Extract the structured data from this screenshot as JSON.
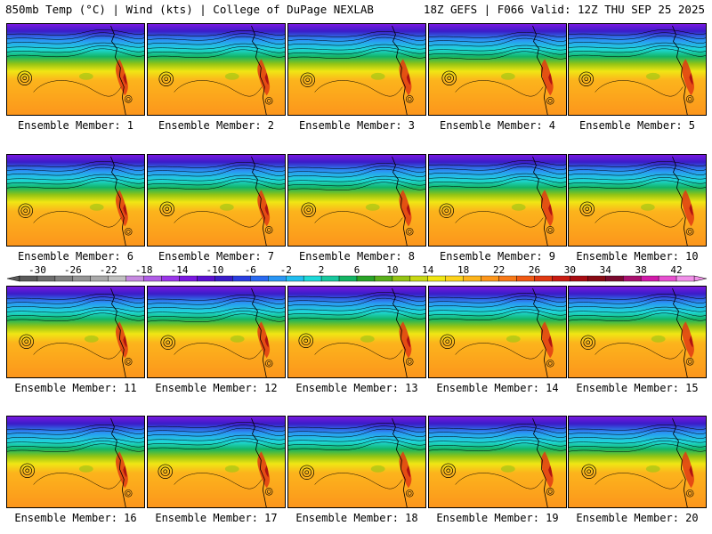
{
  "header": {
    "left": "850mb Temp (°C) | Wind (kts) | College of DuPage NEXLAB",
    "right": "18Z GEFS | F066 Valid: 12Z THU SEP 25 2025"
  },
  "member_label_prefix": "Ensemble Member: ",
  "members": [
    {
      "number": 1,
      "caption": "Ensemble Member: 1"
    },
    {
      "number": 2,
      "caption": "Ensemble Member: 2"
    },
    {
      "number": 3,
      "caption": "Ensemble Member: 3"
    },
    {
      "number": 4,
      "caption": "Ensemble Member: 4"
    },
    {
      "number": 5,
      "caption": "Ensemble Member: 5"
    },
    {
      "number": 6,
      "caption": "Ensemble Member: 6"
    },
    {
      "number": 7,
      "caption": "Ensemble Member: 7"
    },
    {
      "number": 8,
      "caption": "Ensemble Member: 8"
    },
    {
      "number": 9,
      "caption": "Ensemble Member: 9"
    },
    {
      "number": 10,
      "caption": "Ensemble Member: 10"
    },
    {
      "number": 11,
      "caption": "Ensemble Member: 11"
    },
    {
      "number": 12,
      "caption": "Ensemble Member: 12"
    },
    {
      "number": 13,
      "caption": "Ensemble Member: 13"
    },
    {
      "number": 14,
      "caption": "Ensemble Member: 14"
    },
    {
      "number": 15,
      "caption": "Ensemble Member: 15"
    },
    {
      "number": 16,
      "caption": "Ensemble Member: 16"
    },
    {
      "number": 17,
      "caption": "Ensemble Member: 17"
    },
    {
      "number": 18,
      "caption": "Ensemble Member: 18"
    },
    {
      "number": 19,
      "caption": "Ensemble Member: 19"
    },
    {
      "number": 20,
      "caption": "Ensemble Member: 20"
    }
  ],
  "colorbar": {
    "unit": "°C",
    "min": -32,
    "max": 44,
    "step": 2,
    "tick_labels": [
      "-30",
      "-26",
      "-22",
      "-18",
      "-14",
      "-10",
      "-6",
      "-2",
      "2",
      "6",
      "10",
      "14",
      "18",
      "22",
      "26",
      "30",
      "34",
      "38",
      "42"
    ],
    "colors": [
      "#5a5a5a",
      "#6e6e6e",
      "#828282",
      "#969696",
      "#aaaaaa",
      "#c0c0c0",
      "#c68ae0",
      "#b05ee6",
      "#9a36e8",
      "#7a18e0",
      "#5a10d0",
      "#3a1cc8",
      "#2a3ee0",
      "#2a6af0",
      "#2a96f4",
      "#22bef0",
      "#1ed8d8",
      "#18c89e",
      "#14b464",
      "#2aa428",
      "#5ab01c",
      "#94c414",
      "#c8d814",
      "#f0e614",
      "#fcd21c",
      "#fcb41c",
      "#fc961c",
      "#f87a18",
      "#f05a14",
      "#e03a12",
      "#c81c12",
      "#a80c12",
      "#880a14",
      "#7a0a2e",
      "#a8106e",
      "#d01aa8",
      "#e650d0",
      "#f090e8"
    ]
  }
}
